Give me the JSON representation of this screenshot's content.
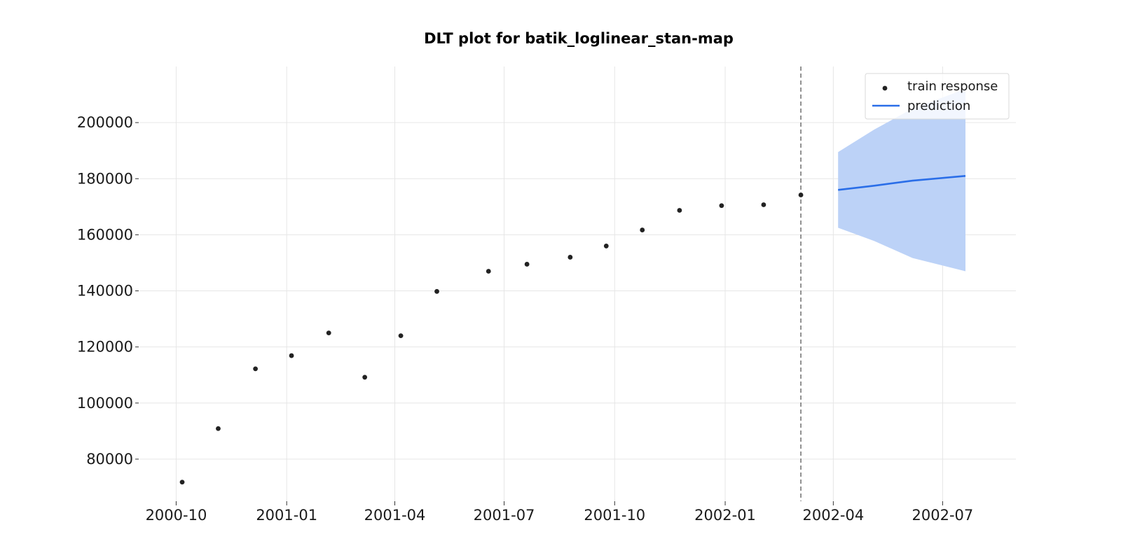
{
  "chart_data": {
    "type": "line",
    "title": "DLT plot for batik_loglinear_stan-map",
    "xlabel": "",
    "ylabel": "",
    "x_ticks": [
      "2000-10",
      "2001-01",
      "2001-04",
      "2001-07",
      "2001-10",
      "2002-01",
      "2002-04",
      "2002-07"
    ],
    "y_ticks": [
      80000,
      100000,
      120000,
      140000,
      160000,
      180000,
      200000
    ],
    "xlim": [
      "2000-09-01",
      "2002-08-31"
    ],
    "ylim": [
      65000,
      220000
    ],
    "grid": true,
    "legend": {
      "position": "top-right",
      "entries": [
        "train response",
        "prediction"
      ]
    },
    "train_response": {
      "name": "train response",
      "color": "#222222",
      "x": [
        "2000-10-06",
        "2000-11-05",
        "2000-12-06",
        "2001-01-05",
        "2001-02-05",
        "2001-03-07",
        "2001-04-06",
        "2001-05-06",
        "2001-06-18",
        "2001-07-20",
        "2001-08-25",
        "2001-09-24",
        "2001-10-24",
        "2001-11-24",
        "2001-12-29",
        "2002-02-02",
        "2002-03-05"
      ],
      "y": [
        71800,
        90900,
        112200,
        116900,
        125000,
        109200,
        124000,
        139800,
        147000,
        149500,
        152000,
        156000,
        161700,
        168700,
        170400,
        170700,
        174200
      ]
    },
    "prediction": {
      "name": "prediction",
      "color": "#2a6ee8",
      "band_color": "#bcd2f7",
      "x": [
        "2002-04-05",
        "2002-05-05",
        "2002-06-06",
        "2002-07-20"
      ],
      "y": [
        176000,
        177500,
        179300,
        181000
      ],
      "lower": [
        162500,
        157800,
        151700,
        147000
      ],
      "upper": [
        189500,
        197500,
        205000,
        212000
      ]
    },
    "train_end_marker": "2002-03-05"
  }
}
